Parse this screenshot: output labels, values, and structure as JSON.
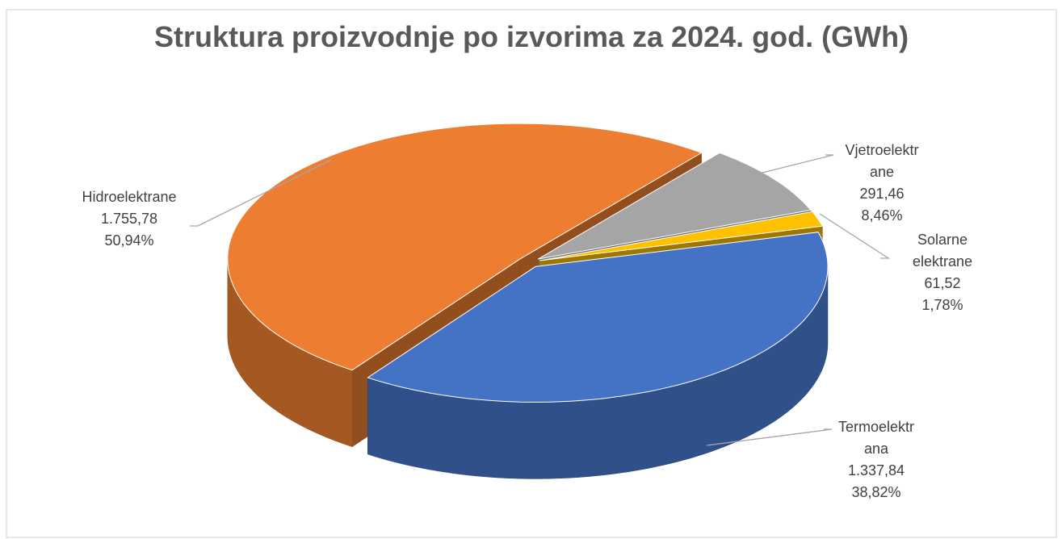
{
  "chart_data": {
    "type": "pie",
    "title": "Struktura proizvodnje po izvorima za 2024. god.  (GWh)",
    "categories": [
      "Hidroelektrane",
      "Vjetroelektrane",
      "Solarne elektrane",
      "Termoelektrana"
    ],
    "values": [
      1755.78,
      291.46,
      61.52,
      1337.84
    ],
    "value_labels": [
      "1.755,78",
      "291,46",
      "61,52",
      "1.337,84"
    ],
    "percents": [
      50.94,
      8.46,
      1.78,
      38.82
    ],
    "percent_labels": [
      "50,94%",
      "8,46%",
      "1,78%",
      "38,82%"
    ],
    "colors": [
      "#ED7D31",
      "#A5A5A5",
      "#FFC000",
      "#4472C4"
    ]
  }
}
